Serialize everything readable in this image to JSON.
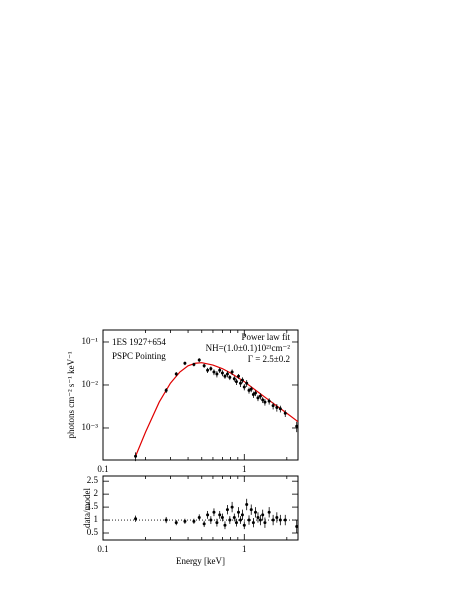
{
  "chart_data": [
    {
      "type": "scatter",
      "xlog": true,
      "ylog": true,
      "ylabel": "photons cm⁻² s⁻¹ keV⁻¹",
      "annotations": [
        "1ES 1927+654",
        "PSPC Pointing",
        "Power law fit",
        "NH=(1.0±0.1)10²¹cm⁻²",
        "Γ = 2.5±0.2"
      ],
      "xlim": [
        0.1,
        2.4
      ],
      "xticks": [
        0.1,
        1
      ],
      "xminorticks": [
        0.2,
        0.3,
        0.4,
        0.5,
        0.6,
        0.7,
        0.8,
        0.9,
        2
      ],
      "ylim": [
        0.00018,
        0.19
      ],
      "yticks": [
        {
          "value": 0.1,
          "label": "10⁻¹"
        },
        {
          "value": 0.01,
          "label": "10⁻²"
        },
        {
          "value": 0.001,
          "label": "10⁻³"
        }
      ],
      "x": [
        0.17,
        0.28,
        0.33,
        0.38,
        0.44,
        0.48,
        0.52,
        0.55,
        0.58,
        0.61,
        0.64,
        0.67,
        0.7,
        0.73,
        0.76,
        0.79,
        0.82,
        0.85,
        0.88,
        0.91,
        0.94,
        0.97,
        1.0,
        1.04,
        1.08,
        1.12,
        1.16,
        1.2,
        1.25,
        1.3,
        1.35,
        1.4,
        1.5,
        1.6,
        1.7,
        1.8,
        1.95,
        2.35
      ],
      "values": [
        0.00022,
        0.0075,
        0.018,
        0.032,
        0.03,
        0.038,
        0.028,
        0.022,
        0.024,
        0.02,
        0.018,
        0.022,
        0.019,
        0.016,
        0.018,
        0.015,
        0.02,
        0.014,
        0.012,
        0.016,
        0.011,
        0.013,
        0.009,
        0.011,
        0.0075,
        0.008,
        0.006,
        0.0065,
        0.005,
        0.0055,
        0.0045,
        0.004,
        0.0042,
        0.0033,
        0.003,
        0.0028,
        0.0022,
        0.0011
      ],
      "errors": [
        5e-05,
        0.001,
        0.002,
        0.003,
        0.003,
        0.004,
        0.003,
        0.003,
        0.003,
        0.003,
        0.003,
        0.003,
        0.003,
        0.002,
        0.003,
        0.002,
        0.003,
        0.002,
        0.002,
        0.002,
        0.002,
        0.002,
        0.0015,
        0.002,
        0.0012,
        0.0012,
        0.001,
        0.001,
        0.0008,
        0.0009,
        0.0007,
        0.0007,
        0.0007,
        0.0006,
        0.0006,
        0.0005,
        0.0004,
        0.0003
      ],
      "color": "#000000",
      "model": {
        "color": "#e00000",
        "x": [
          0.17,
          0.2,
          0.25,
          0.3,
          0.35,
          0.4,
          0.45,
          0.5,
          0.6,
          0.7,
          0.8,
          1.0,
          1.2,
          1.5,
          2.0,
          2.4
        ],
        "values": [
          0.00022,
          0.0008,
          0.004,
          0.011,
          0.02,
          0.028,
          0.032,
          0.033,
          0.029,
          0.024,
          0.019,
          0.012,
          0.0076,
          0.0044,
          0.0022,
          0.0014
        ]
      }
    },
    {
      "type": "scatter",
      "xlog": true,
      "ylog": false,
      "xlabel": "Energy [keV]",
      "ylabel": "data/model",
      "xlim": [
        0.1,
        2.4
      ],
      "xticks": [
        0.1,
        1
      ],
      "xminorticks": [
        0.2,
        0.3,
        0.4,
        0.5,
        0.6,
        0.7,
        0.8,
        0.9,
        2
      ],
      "ylim": [
        0.23,
        2.7
      ],
      "yticks": [
        0.5,
        1,
        1.5,
        2,
        2.5
      ],
      "reference_line": 1,
      "x": [
        0.17,
        0.28,
        0.33,
        0.38,
        0.44,
        0.48,
        0.52,
        0.55,
        0.58,
        0.61,
        0.64,
        0.67,
        0.7,
        0.73,
        0.76,
        0.79,
        0.82,
        0.85,
        0.88,
        0.91,
        0.94,
        0.97,
        1.0,
        1.04,
        1.08,
        1.12,
        1.16,
        1.2,
        1.25,
        1.3,
        1.35,
        1.4,
        1.5,
        1.6,
        1.7,
        1.8,
        1.95,
        2.35
      ],
      "values": [
        1.05,
        1.0,
        0.9,
        0.95,
        0.95,
        1.1,
        0.85,
        1.2,
        1.0,
        1.3,
        0.9,
        1.2,
        1.1,
        0.8,
        1.4,
        1.0,
        1.5,
        1.1,
        0.9,
        1.3,
        1.0,
        1.2,
        0.8,
        1.6,
        1.0,
        1.4,
        0.9,
        1.3,
        1.1,
        1.0,
        1.2,
        0.9,
        1.3,
        1.0,
        1.1,
        1.0,
        1.0,
        0.75
      ],
      "errors": [
        0.12,
        0.12,
        0.1,
        0.1,
        0.1,
        0.12,
        0.12,
        0.15,
        0.15,
        0.15,
        0.15,
        0.15,
        0.15,
        0.15,
        0.18,
        0.15,
        0.2,
        0.15,
        0.15,
        0.2,
        0.15,
        0.2,
        0.15,
        0.22,
        0.18,
        0.2,
        0.18,
        0.2,
        0.2,
        0.2,
        0.2,
        0.2,
        0.2,
        0.2,
        0.2,
        0.2,
        0.2,
        0.25
      ],
      "color": "#000000"
    }
  ]
}
